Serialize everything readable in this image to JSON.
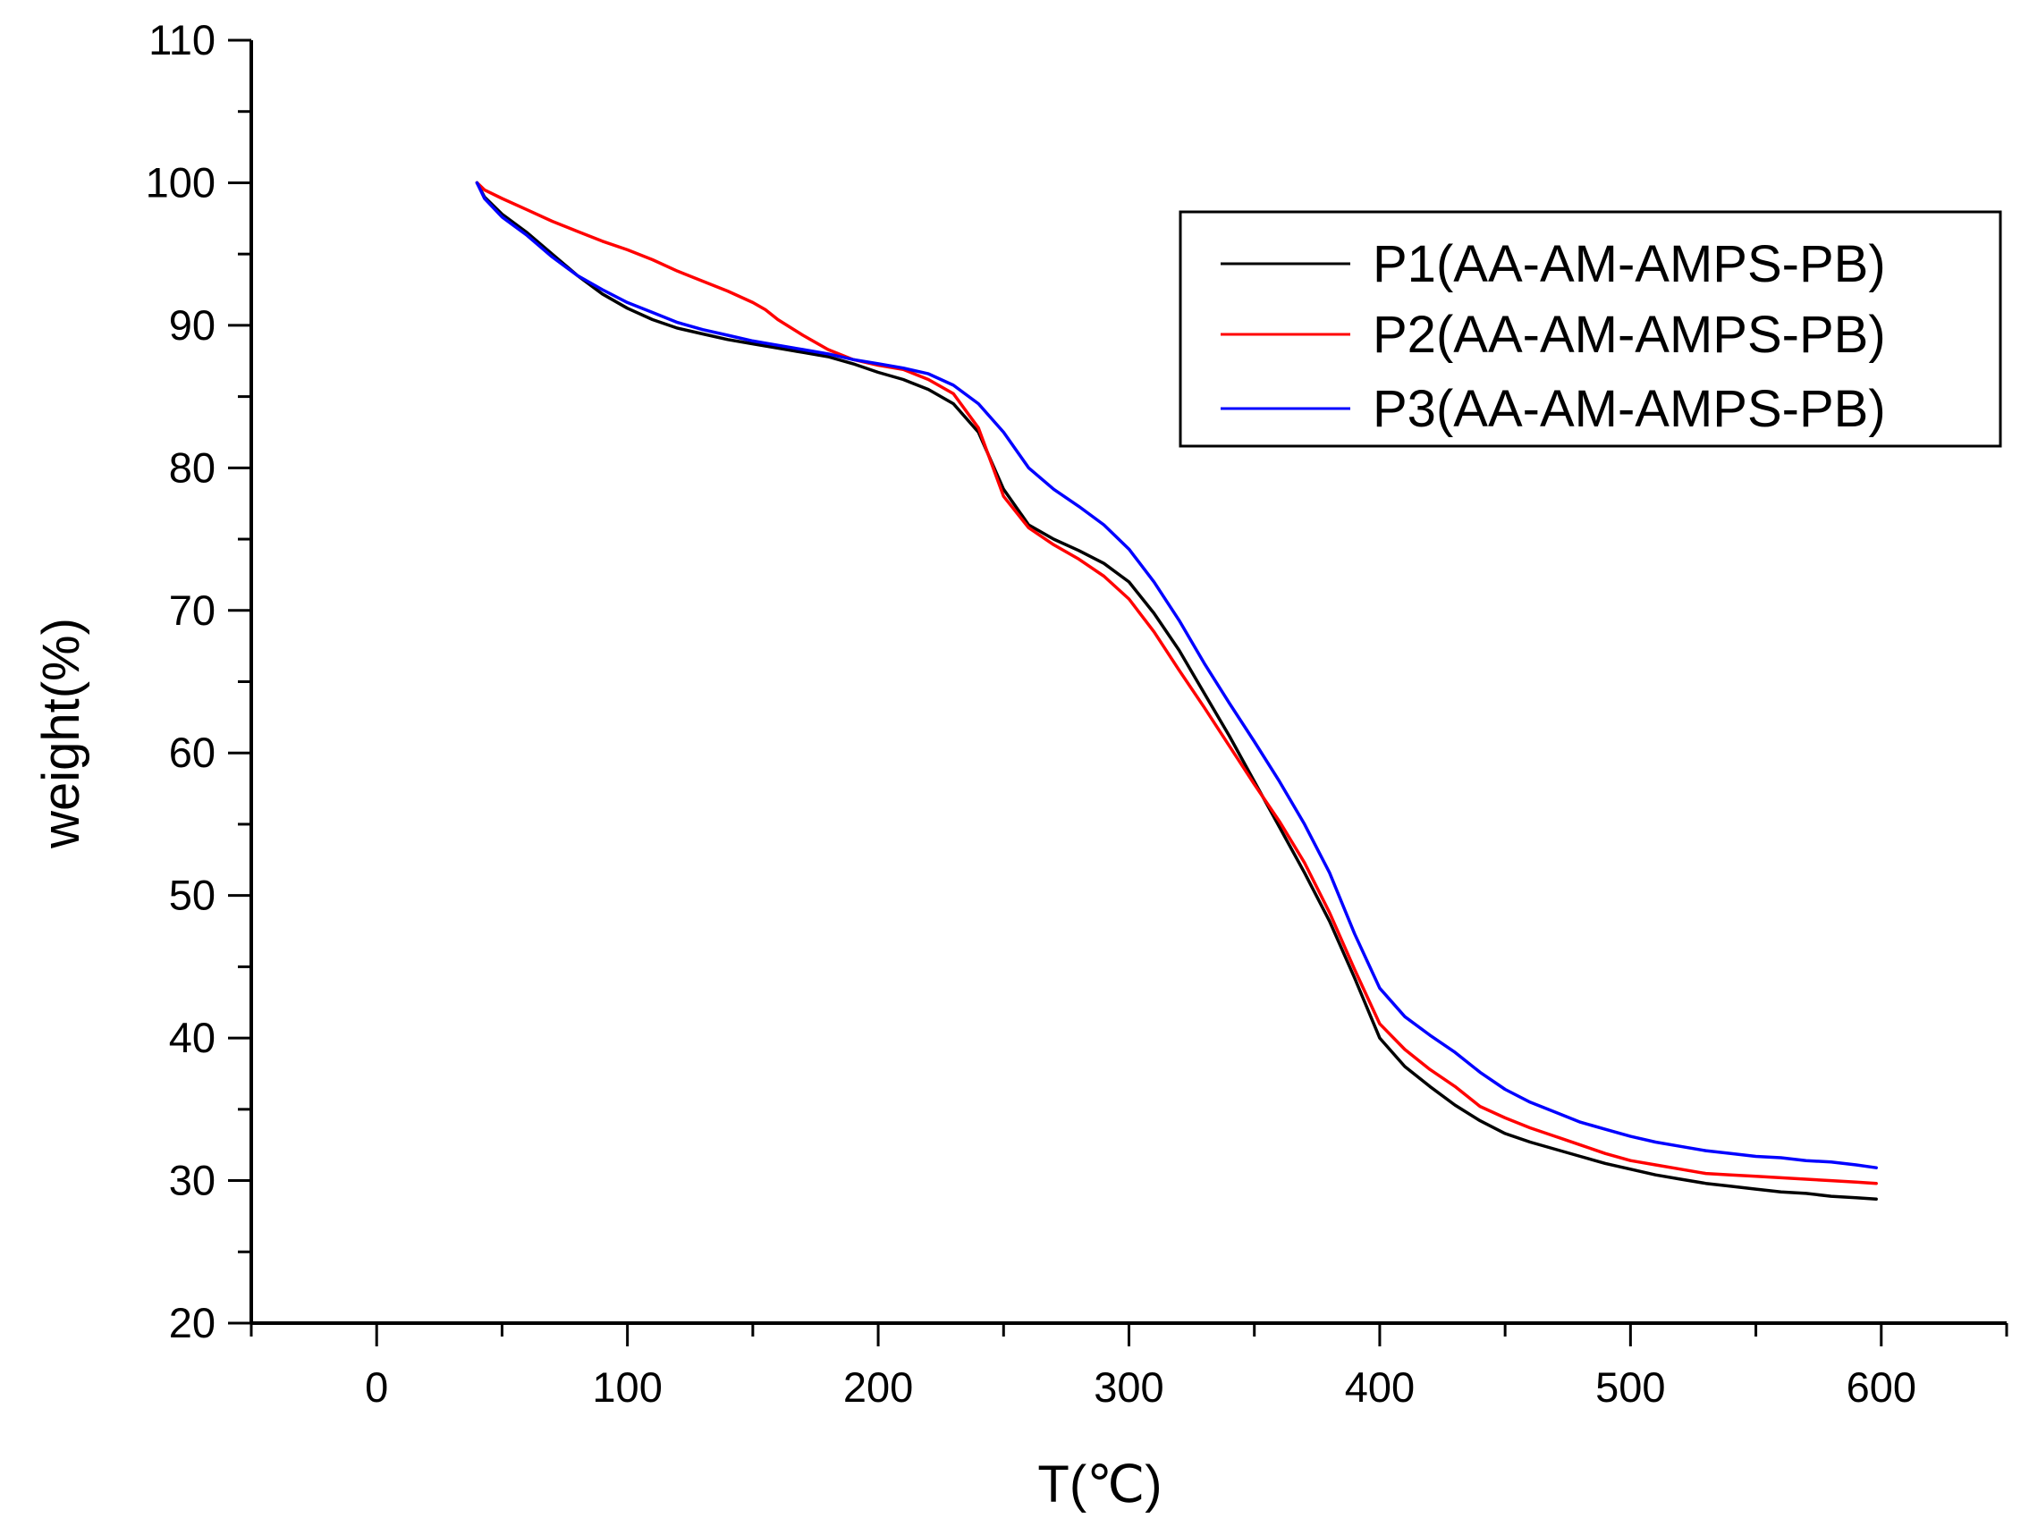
{
  "chart_data": {
    "type": "line",
    "title": "",
    "xlabel": "T(℃)",
    "ylabel": "weight(%)",
    "xlim": [
      -50,
      650
    ],
    "ylim": [
      20,
      110
    ],
    "x_ticks": [
      0,
      100,
      200,
      300,
      400,
      500,
      600
    ],
    "x_tick_labels": [
      "0",
      "100",
      "200",
      "300",
      "400",
      "500",
      "600"
    ],
    "y_ticks": [
      20,
      30,
      40,
      50,
      60,
      70,
      80,
      90,
      100,
      110
    ],
    "y_tick_labels": [
      "20",
      "30",
      "40",
      "50",
      "60",
      "70",
      "80",
      "90",
      "100",
      "110"
    ],
    "grid": false,
    "legend_position": "top-right",
    "series": [
      {
        "name": "P1(AA-AM-AMPS-PB)",
        "color": "#000000",
        "x": [
          40,
          43,
          50,
          60,
          70,
          80,
          90,
          100,
          110,
          120,
          130,
          140,
          150,
          160,
          170,
          180,
          190,
          200,
          210,
          220,
          230,
          240,
          250,
          260,
          270,
          280,
          290,
          300,
          310,
          320,
          330,
          340,
          350,
          360,
          370,
          380,
          390,
          400,
          410,
          420,
          430,
          440,
          450,
          460,
          470,
          480,
          490,
          500,
          510,
          520,
          530,
          540,
          550,
          560,
          570,
          580,
          590,
          598
        ],
        "y": [
          100,
          99,
          97.8,
          96.5,
          95,
          93.5,
          92.2,
          91.2,
          90.4,
          89.8,
          89.4,
          89.0,
          88.7,
          88.4,
          88.1,
          87.8,
          87.3,
          86.7,
          86.2,
          85.5,
          84.5,
          82.5,
          78.5,
          76.0,
          75.0,
          74.2,
          73.3,
          72.0,
          69.8,
          67.2,
          64.2,
          61.2,
          58.0,
          54.8,
          51.6,
          48.2,
          44.2,
          40.0,
          38.0,
          36.6,
          35.3,
          34.2,
          33.3,
          32.7,
          32.2,
          31.7,
          31.2,
          30.8,
          30.4,
          30.1,
          29.8,
          29.6,
          29.4,
          29.2,
          29.1,
          28.9,
          28.8,
          28.7
        ]
      },
      {
        "name": "P2(AA-AM-AMPS-PB)",
        "color": "#ff0000",
        "x": [
          40,
          43,
          50,
          60,
          70,
          80,
          90,
          100,
          110,
          120,
          130,
          140,
          150,
          155,
          160,
          170,
          180,
          190,
          200,
          210,
          220,
          230,
          240,
          250,
          260,
          270,
          280,
          290,
          300,
          310,
          320,
          330,
          340,
          350,
          360,
          370,
          380,
          390,
          400,
          410,
          420,
          430,
          440,
          450,
          460,
          470,
          480,
          490,
          500,
          510,
          520,
          530,
          540,
          550,
          560,
          570,
          580,
          590,
          598
        ],
        "y": [
          100,
          99.5,
          98.9,
          98.1,
          97.3,
          96.6,
          95.9,
          95.3,
          94.6,
          93.8,
          93.1,
          92.4,
          91.6,
          91.1,
          90.4,
          89.3,
          88.3,
          87.6,
          87.2,
          86.9,
          86.2,
          85.2,
          82.8,
          78.0,
          75.8,
          74.6,
          73.6,
          72.4,
          70.8,
          68.5,
          65.8,
          63.2,
          60.5,
          57.8,
          55.2,
          52.3,
          48.8,
          44.8,
          41.0,
          39.2,
          37.8,
          36.6,
          35.2,
          34.4,
          33.7,
          33.1,
          32.5,
          31.9,
          31.4,
          31.1,
          30.8,
          30.5,
          30.4,
          30.3,
          30.2,
          30.1,
          30.0,
          29.9,
          29.8
        ]
      },
      {
        "name": "P3(AA-AM-AMPS-PB)",
        "color": "#0000ff",
        "x": [
          40,
          43,
          50,
          60,
          70,
          80,
          90,
          100,
          110,
          120,
          130,
          140,
          150,
          160,
          170,
          180,
          190,
          200,
          210,
          220,
          230,
          240,
          250,
          260,
          270,
          280,
          290,
          300,
          310,
          320,
          330,
          340,
          350,
          360,
          370,
          380,
          390,
          400,
          410,
          420,
          430,
          440,
          450,
          460,
          470,
          480,
          490,
          500,
          510,
          520,
          530,
          540,
          550,
          560,
          570,
          580,
          590,
          598
        ],
        "y": [
          100,
          98.9,
          97.6,
          96.3,
          94.8,
          93.5,
          92.5,
          91.6,
          90.9,
          90.2,
          89.7,
          89.3,
          88.9,
          88.6,
          88.3,
          88.0,
          87.6,
          87.3,
          87.0,
          86.6,
          85.8,
          84.5,
          82.5,
          80.0,
          78.5,
          77.3,
          76.0,
          74.3,
          72.0,
          69.3,
          66.3,
          63.5,
          60.8,
          58.0,
          55.0,
          51.6,
          47.3,
          43.5,
          41.5,
          40.2,
          39.0,
          37.6,
          36.4,
          35.5,
          34.8,
          34.1,
          33.6,
          33.1,
          32.7,
          32.4,
          32.1,
          31.9,
          31.7,
          31.6,
          31.4,
          31.3,
          31.1,
          30.9
        ]
      }
    ]
  }
}
